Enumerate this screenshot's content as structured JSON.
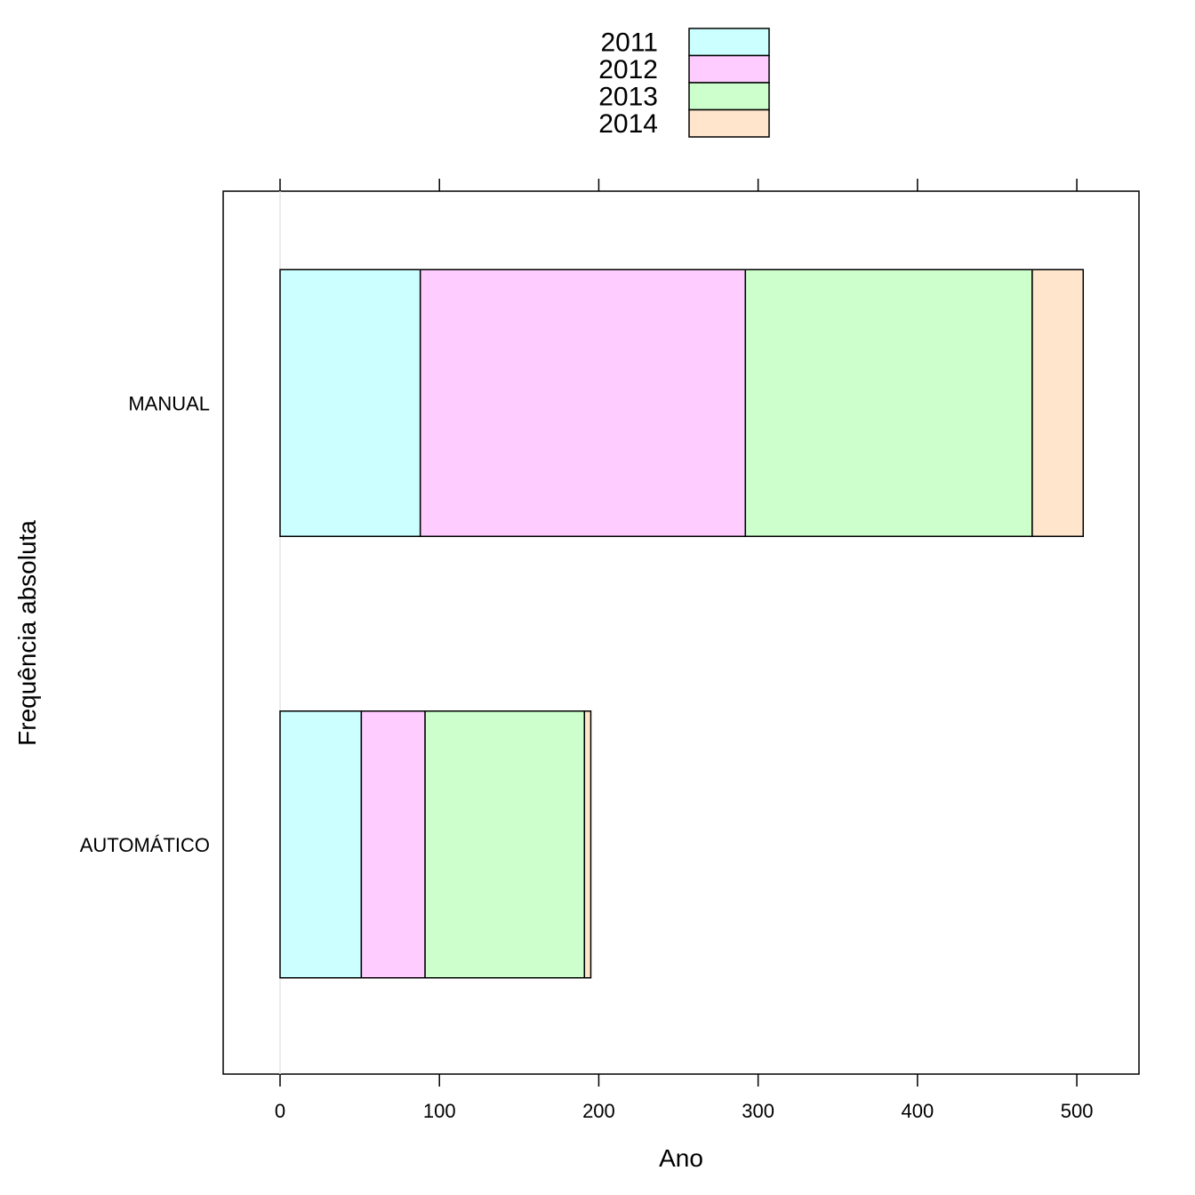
{
  "chart_data": {
    "type": "bar",
    "orientation": "horizontal",
    "stacked": true,
    "categories": [
      "MANUAL",
      "AUTOMÁTICO"
    ],
    "series": [
      {
        "name": "2011",
        "values": [
          88,
          51
        ],
        "color": "#CCFFFF"
      },
      {
        "name": "2012",
        "values": [
          204,
          40
        ],
        "color": "#FFCCFF"
      },
      {
        "name": "2013",
        "values": [
          180,
          100
        ],
        "color": "#CCFFCC"
      },
      {
        "name": "2014",
        "values": [
          32,
          4
        ],
        "color": "#FFE5CC"
      }
    ],
    "xticks": [
      0,
      100,
      200,
      300,
      400,
      500
    ],
    "xlim": [
      -35.7,
      539
    ],
    "xlabel": "Ano",
    "ylabel": "Frequência absoluta",
    "legend_position": "top",
    "grid": false
  }
}
